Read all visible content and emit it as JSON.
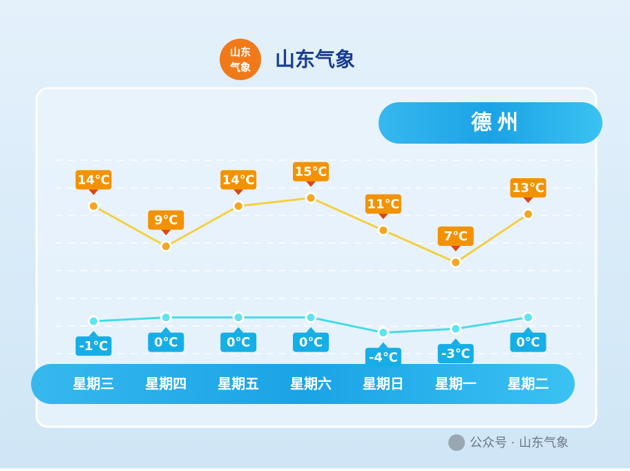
{
  "header": {
    "logo_top": "山东",
    "logo_bottom": "气象",
    "title": "山东气象"
  },
  "chart_data": {
    "type": "line",
    "city": "德州",
    "categories": [
      "星期三",
      "星期四",
      "星期五",
      "星期六",
      "星期日",
      "星期一",
      "星期二"
    ],
    "series": [
      {
        "color": "#f5cf3f",
        "label_color": "#f39200",
        "values": [
          14,
          9,
          14,
          15,
          11,
          7,
          13
        ],
        "value_labels": [
          "14℃",
          "9℃",
          "14℃",
          "15℃",
          "11℃",
          "7℃",
          "13℃"
        ]
      },
      {
        "color": "#44dbe9",
        "label_color": "#16aee6",
        "axis": "y2",
        "values": [
          -1,
          0,
          0,
          0,
          -4,
          -3,
          0
        ],
        "value_labels": [
          "-1℃",
          "0℃",
          "0℃",
          "0℃",
          "-4℃",
          "-3℃",
          "0℃"
        ]
      }
    ],
    "ylim": [
      -5,
      19
    ],
    "y2lim": [
      -11,
      40
    ]
  },
  "watermark": "公众号 · 山东气象"
}
